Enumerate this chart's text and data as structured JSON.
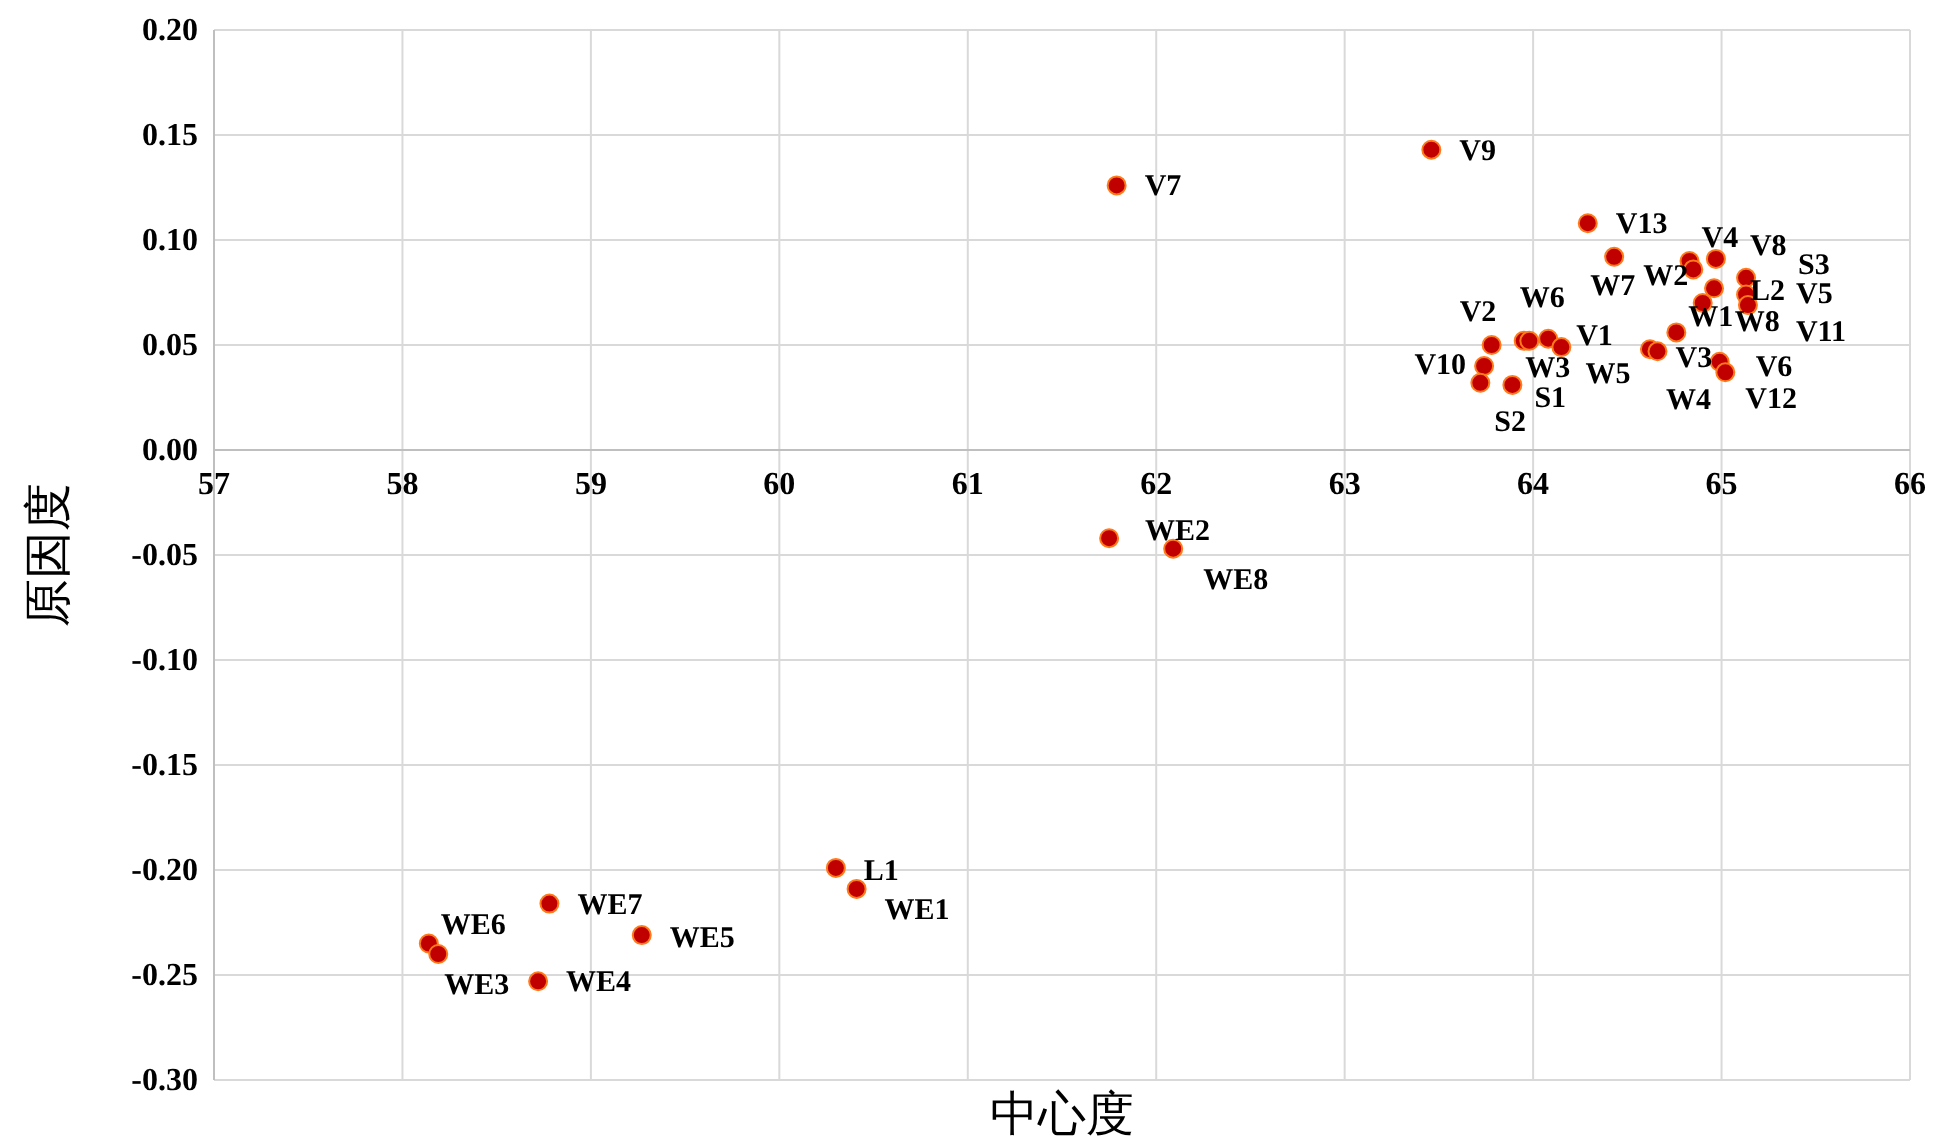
{
  "chart_data": {
    "type": "scatter",
    "xlabel": "中心度",
    "ylabel": "原因度",
    "marker": "circle",
    "grid": true,
    "xlim": [
      57,
      66
    ],
    "xticks": [
      57,
      58,
      59,
      60,
      61,
      62,
      63,
      64,
      65,
      66
    ],
    "ylim": [
      -0.3,
      0.2
    ],
    "yticks": [
      {
        "value": -0.3,
        "label": "-0.30"
      },
      {
        "value": -0.25,
        "label": "-0.25"
      },
      {
        "value": -0.2,
        "label": "-0.20"
      },
      {
        "value": -0.15,
        "label": "-0.15"
      },
      {
        "value": -0.1,
        "label": "-0.10"
      },
      {
        "value": -0.05,
        "label": "-0.05"
      },
      {
        "value": 0,
        "label": "0.00"
      },
      {
        "value": 0.05,
        "label": "0.05"
      },
      {
        "value": 0.1,
        "label": "0.10"
      },
      {
        "value": 0.15,
        "label": "0.15"
      },
      {
        "value": 0.2,
        "label": "0.20"
      }
    ],
    "series": [
      {
        "color": "#c00000",
        "x": [
          63.46,
          64.29,
          64.43,
          64.83,
          64.85,
          64.97,
          65.13,
          65.13,
          65.14,
          64.96,
          64.9,
          64.76,
          64.62,
          64.66,
          64.99,
          65.02,
          63.78,
          63.95,
          63.98,
          64.08,
          64.15,
          63.74,
          63.72,
          63.89,
          61.79,
          61.75,
          62.09,
          60.3,
          60.41,
          58.14,
          58.19,
          58.78,
          59.27,
          58.72
        ],
        "values": [
          0.143,
          0.108,
          0.092,
          0.09,
          0.086,
          0.091,
          0.082,
          0.074,
          0.069,
          0.077,
          0.07,
          0.056,
          0.048,
          0.047,
          0.042,
          0.037,
          0.05,
          0.052,
          0.052,
          0.053,
          0.049,
          0.04,
          0.032,
          0.031,
          0.126,
          -0.042,
          -0.047,
          -0.199,
          -0.209,
          -0.235,
          -0.24,
          -0.216,
          -0.231,
          -0.253
        ]
      }
    ],
    "annotations": [
      {
        "text": "V9",
        "x": 63.46,
        "y": 0.143
      },
      {
        "text": "V13",
        "x": 64.29,
        "y": 0.108
      },
      {
        "text": "W7",
        "x": 64.43,
        "y": 0.092
      },
      {
        "text": "V4",
        "x": 64.83,
        "y": 0.09
      },
      {
        "text": "W2",
        "x": 64.85,
        "y": 0.086
      },
      {
        "text": "V8",
        "x": 64.97,
        "y": 0.091
      },
      {
        "text": "S3",
        "x": 65.13,
        "y": 0.082
      },
      {
        "text": "V5",
        "x": 65.13,
        "y": 0.074
      },
      {
        "text": "V11",
        "x": 65.14,
        "y": 0.069
      },
      {
        "text": "L2",
        "x": 64.96,
        "y": 0.077
      },
      {
        "text": "W8",
        "x": 64.9,
        "y": 0.07
      },
      {
        "text": "W1",
        "x": 64.76,
        "y": 0.056
      },
      {
        "text": "W4",
        "x": 64.62,
        "y": 0.048
      },
      {
        "text": "V3",
        "x": 64.66,
        "y": 0.047
      },
      {
        "text": "V6",
        "x": 64.99,
        "y": 0.042
      },
      {
        "text": "V12",
        "x": 65.02,
        "y": 0.037
      },
      {
        "text": "V2",
        "x": 63.78,
        "y": 0.05
      },
      {
        "text": "W6",
        "x": 63.95,
        "y": 0.052
      },
      {
        "text": "W3",
        "x": 63.98,
        "y": 0.052
      },
      {
        "text": "V1",
        "x": 64.08,
        "y": 0.053
      },
      {
        "text": "W5",
        "x": 64.15,
        "y": 0.049
      },
      {
        "text": "V10",
        "x": 63.74,
        "y": 0.04
      },
      {
        "text": "S2",
        "x": 63.72,
        "y": 0.032
      },
      {
        "text": "S1",
        "x": 63.89,
        "y": 0.031
      },
      {
        "text": "V7",
        "x": 61.79,
        "y": 0.126
      },
      {
        "text": "WE2",
        "x": 61.75,
        "y": -0.042
      },
      {
        "text": "WE8",
        "x": 62.09,
        "y": -0.047
      },
      {
        "text": "L1",
        "x": 60.3,
        "y": -0.199
      },
      {
        "text": "WE1",
        "x": 60.41,
        "y": -0.209
      },
      {
        "text": "WE6",
        "x": 58.14,
        "y": -0.235
      },
      {
        "text": "WE3",
        "x": 58.19,
        "y": -0.24
      },
      {
        "text": "WE7",
        "x": 58.78,
        "y": -0.216
      },
      {
        "text": "WE5",
        "x": 59.27,
        "y": -0.231
      },
      {
        "text": "WE4",
        "x": 58.72,
        "y": -0.253
      }
    ]
  }
}
